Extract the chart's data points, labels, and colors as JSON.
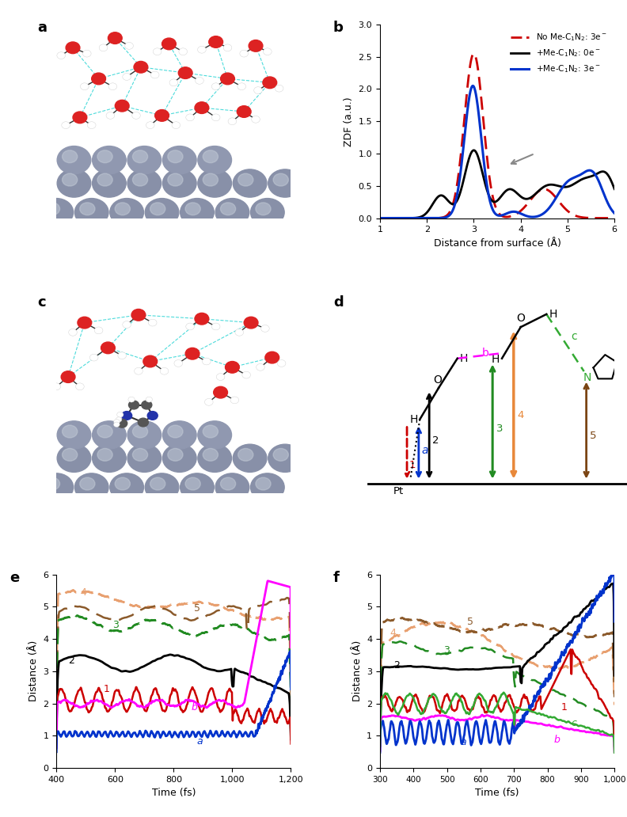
{
  "panel_b": {
    "xlabel": "Distance from surface (Å)",
    "ylabel": "ZDF (a.u.)",
    "xlim": [
      1,
      6
    ],
    "ylim": [
      0,
      3.0
    ],
    "yticks": [
      0,
      0.5,
      1.0,
      1.5,
      2.0,
      2.5,
      3.0
    ],
    "xticks": [
      1,
      2,
      3,
      4,
      5,
      6
    ]
  },
  "panel_e": {
    "xlabel": "Time (fs)",
    "ylabel": "Distance (Å)",
    "xlim": [
      400,
      1200
    ],
    "ylim": [
      0,
      6
    ],
    "xticks": [
      400,
      600,
      800,
      1000,
      1200
    ],
    "yticks": [
      0,
      1,
      2,
      3,
      4,
      5,
      6
    ],
    "xtick_labels": [
      "400",
      "600",
      "800",
      "1,000",
      "1,200"
    ]
  },
  "panel_f": {
    "xlabel": "Time (fs)",
    "ylabel": "Distance (Å)",
    "xlim": [
      300,
      1000
    ],
    "ylim": [
      0,
      6
    ],
    "xticks": [
      300,
      400,
      500,
      600,
      700,
      800,
      900,
      1000
    ],
    "yticks": [
      0,
      1,
      2,
      3,
      4,
      5,
      6
    ],
    "xtick_labels": [
      "300",
      "400",
      "500",
      "600",
      "700",
      "800",
      "900",
      "1,000"
    ]
  },
  "colors": {
    "red_dashed": "#cc0000",
    "black": "#000000",
    "blue": "#0033cc",
    "magenta": "#ff00ff",
    "dark_red": "#cc0000",
    "green_dashed": "#228B22",
    "orange_dashed": "#E8A070",
    "brown_dashed": "#8B5A2B",
    "panel_label": "#000000"
  }
}
